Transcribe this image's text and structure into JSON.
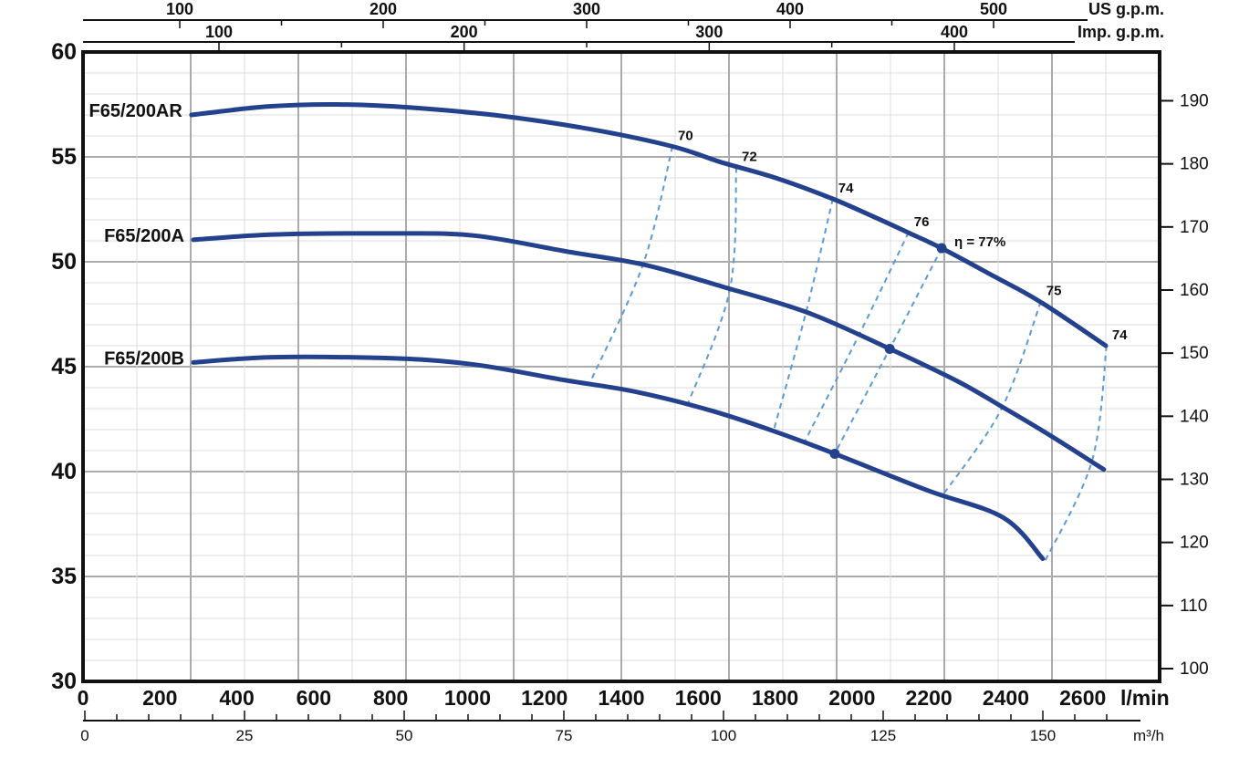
{
  "chart_data": {
    "type": "line",
    "title": "",
    "x_axis_bottom": {
      "unit_label": "l/min",
      "ticks": [
        0,
        200,
        400,
        600,
        800,
        1000,
        1200,
        1400,
        1600,
        1800,
        2000,
        2200,
        2400,
        2600
      ],
      "range": [
        0,
        2800
      ]
    },
    "x_axis_secondary": {
      "unit_label": "m³/h",
      "major_ticks": [
        0,
        25,
        50,
        75,
        100,
        125,
        150
      ],
      "minor_step": 5,
      "minor_max": 160
    },
    "x_axis_top_us": {
      "unit_label": "US g.p.m.",
      "ticks": [
        100,
        200,
        300,
        400,
        500
      ],
      "minor_ticks": [
        150,
        250,
        350,
        450,
        550
      ]
    },
    "x_axis_top_imp": {
      "unit_label": "Imp. g.p.m.",
      "ticks": [
        100,
        200,
        300,
        400
      ],
      "minor_ticks": [
        150,
        250,
        350,
        450
      ]
    },
    "y_axis_left": {
      "ticks": [
        60,
        55,
        50,
        45,
        40,
        35,
        30
      ],
      "range": [
        30,
        60
      ]
    },
    "y_axis_right": {
      "ticks": [
        190,
        180,
        170,
        160,
        150,
        140,
        130,
        120,
        110,
        100
      ]
    },
    "series": [
      {
        "id": "f65-200ar",
        "name": "F65/200AR",
        "points": [
          [
            282,
            57.0
          ],
          [
            479,
            57.4
          ],
          [
            662,
            57.5
          ],
          [
            852,
            57.35
          ],
          [
            1089,
            56.95
          ],
          [
            1326,
            56.3
          ],
          [
            1533,
            55.5
          ],
          [
            1659,
            54.75
          ],
          [
            1801,
            54.0
          ],
          [
            1950,
            53.0
          ],
          [
            2062,
            52.1
          ],
          [
            2145,
            51.4
          ],
          [
            2233,
            50.65
          ],
          [
            2370,
            49.3
          ],
          [
            2489,
            48.1
          ],
          [
            2660,
            46.0
          ]
        ]
      },
      {
        "id": "f65-200a",
        "name": "F65/200A",
        "points": [
          [
            287,
            51.05
          ],
          [
            496,
            51.3
          ],
          [
            804,
            51.35
          ],
          [
            1018,
            51.25
          ],
          [
            1255,
            50.5
          ],
          [
            1462,
            49.85
          ],
          [
            1666,
            48.8
          ],
          [
            1889,
            47.55
          ],
          [
            2098,
            45.85
          ],
          [
            2275,
            44.3
          ],
          [
            2394,
            43.05
          ],
          [
            2513,
            41.75
          ],
          [
            2655,
            40.1
          ]
        ]
      },
      {
        "id": "f65-200b",
        "name": "F65/200B",
        "points": [
          [
            287,
            45.2
          ],
          [
            496,
            45.45
          ],
          [
            804,
            45.4
          ],
          [
            1018,
            45.1
          ],
          [
            1255,
            44.35
          ],
          [
            1438,
            43.8
          ],
          [
            1635,
            42.9
          ],
          [
            1801,
            41.9
          ],
          [
            1955,
            40.85
          ],
          [
            2197,
            39.1
          ],
          [
            2394,
            37.8
          ],
          [
            2496,
            35.85
          ]
        ]
      }
    ],
    "efficiency_contours": [
      {
        "id": "eta-70",
        "label": "70",
        "is_bep": false,
        "points": [
          [
            1533,
            55.5
          ],
          [
            1457,
            49.9
          ],
          [
            1320,
            44.3
          ]
        ]
      },
      {
        "id": "eta-72",
        "label": "72",
        "is_bep": false,
        "points": [
          [
            1699,
            54.5
          ],
          [
            1682,
            48.65
          ],
          [
            1571,
            43.15
          ]
        ]
      },
      {
        "id": "eta-74",
        "label": "74",
        "is_bep": false,
        "points": [
          [
            1950,
            53.0
          ],
          [
            1879,
            47.5
          ],
          [
            1796,
            41.95
          ]
        ]
      },
      {
        "id": "eta-76",
        "label": "76",
        "is_bep": false,
        "points": [
          [
            2147,
            51.4
          ],
          [
            2019,
            46.55
          ],
          [
            1872,
            41.25
          ]
        ]
      },
      {
        "id": "eta-77-bep",
        "label": "η = 77%",
        "is_bep": true,
        "points": [
          [
            2233,
            50.65
          ],
          [
            2098,
            45.85
          ],
          [
            1955,
            40.85
          ]
        ]
      },
      {
        "id": "eta-75-right",
        "label": "75",
        "is_bep": false,
        "points": [
          [
            2491,
            48.1
          ],
          [
            2389,
            43.0
          ],
          [
            2233,
            38.8
          ]
        ]
      },
      {
        "id": "eta-74-right",
        "label": "74",
        "is_bep": false,
        "points": [
          [
            2662,
            46.0
          ],
          [
            2624,
            40.5
          ],
          [
            2501,
            35.7
          ]
        ]
      }
    ],
    "colors": {
      "curve": "#24418e",
      "contour": "#5b9bd5",
      "grid_minor": "#dcdcdc",
      "grid_major": "#ababab",
      "axis": "#111111",
      "text": "#111111",
      "background": "#ffffff"
    }
  }
}
